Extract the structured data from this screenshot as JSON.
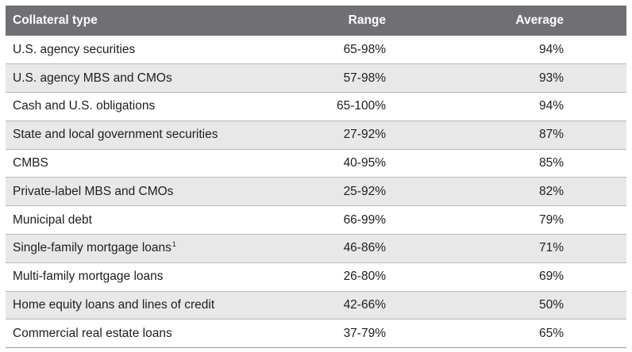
{
  "table": {
    "headers": {
      "type": "Collateral type",
      "range": "Range",
      "average": "Average"
    },
    "rows": [
      {
        "type": "U.S. agency securities",
        "footnote": "",
        "range": "65-98%",
        "average": "94%"
      },
      {
        "type": "U.S. agency MBS and CMOs",
        "footnote": "",
        "range": "57-98%",
        "average": "93%"
      },
      {
        "type": "Cash and U.S. obligations",
        "footnote": "",
        "range": "65-100%",
        "average": "94%"
      },
      {
        "type": "State and local government securities",
        "footnote": "",
        "range": "27-92%",
        "average": "87%"
      },
      {
        "type": "CMBS",
        "footnote": "",
        "range": "40-95%",
        "average": "85%"
      },
      {
        "type": "Private-label MBS and CMOs",
        "footnote": "",
        "range": "25-92%",
        "average": "82%"
      },
      {
        "type": "Municipal debt",
        "footnote": "",
        "range": "66-99%",
        "average": "79%"
      },
      {
        "type": "Single-family mortgage loans",
        "footnote": "1",
        "range": "46-86%",
        "average": "71%"
      },
      {
        "type": "Multi-family mortgage loans",
        "footnote": "",
        "range": "26-80%",
        "average": "69%"
      },
      {
        "type": "Home equity loans and lines of credit",
        "footnote": "",
        "range": "42-66%",
        "average": "50%"
      },
      {
        "type": "Commercial real estate loans",
        "footnote": "",
        "range": "37-79%",
        "average": "65%"
      }
    ]
  }
}
